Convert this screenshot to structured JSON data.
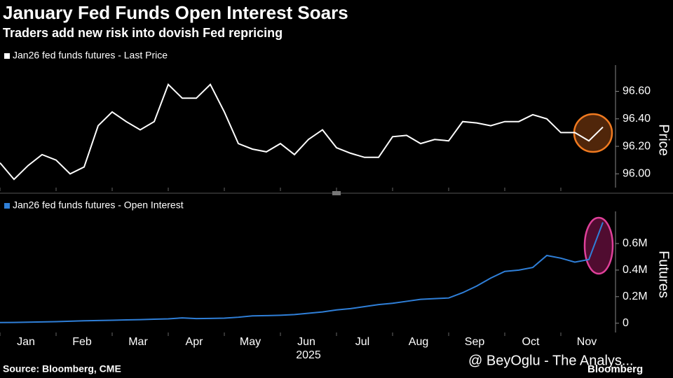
{
  "title": "January Fed Funds Open Interest Soars",
  "subtitle": "Traders add new risk into dovish Fed repricing",
  "source": "Source: Bloomberg, CME",
  "watermark": "@ BeyOglu - The Analys...",
  "brand": "Bloomberg",
  "chart_data": [
    {
      "type": "line",
      "y_label": "Price",
      "categories": [
        null,
        null,
        "Jan",
        null,
        null,
        null,
        "Feb",
        null,
        null,
        null,
        "Mar",
        null,
        null,
        null,
        "Apr",
        null,
        null,
        null,
        "May",
        null,
        null,
        null,
        "Jun",
        null,
        null,
        null,
        "Jul",
        null,
        null,
        null,
        "Aug",
        null,
        null,
        null,
        "Sep",
        null,
        null,
        null,
        "Oct",
        null,
        null,
        null,
        "Nov",
        null
      ],
      "series": [
        {
          "name": "Jan26 fed funds futures - Last Price",
          "color": "#ffffff",
          "values": [
            96.08,
            95.96,
            96.06,
            96.14,
            96.1,
            96.0,
            96.05,
            96.35,
            96.45,
            96.38,
            96.32,
            96.38,
            96.65,
            96.55,
            96.55,
            96.65,
            96.45,
            96.22,
            96.18,
            96.16,
            96.22,
            96.14,
            96.25,
            96.32,
            96.19,
            96.15,
            96.12,
            96.12,
            96.27,
            96.28,
            96.22,
            96.25,
            96.24,
            96.38,
            96.37,
            96.35,
            96.38,
            96.38,
            96.43,
            96.4,
            96.3,
            96.3,
            96.24,
            96.34
          ]
        }
      ],
      "ylim": [
        95.9,
        96.75
      ],
      "yticks": [
        {
          "value": 96,
          "label": "96.00"
        },
        {
          "value": 96.2,
          "label": "96.20"
        },
        {
          "value": 96.4,
          "label": "96.40"
        },
        {
          "value": 96.6,
          "label": "96.60"
        }
      ]
    },
    {
      "type": "line",
      "y_label": "Futures",
      "x_label": "2025",
      "categories": [
        null,
        null,
        "Jan",
        null,
        null,
        null,
        "Feb",
        null,
        null,
        null,
        "Mar",
        null,
        null,
        null,
        "Apr",
        null,
        null,
        null,
        "May",
        null,
        null,
        null,
        "Jun",
        null,
        null,
        null,
        "Jul",
        null,
        null,
        null,
        "Aug",
        null,
        null,
        null,
        "Sep",
        null,
        null,
        null,
        "Oct",
        null,
        null,
        null,
        "Nov",
        null
      ],
      "series": [
        {
          "name": "Jan26 fed funds futures - Open Interest",
          "color": "#2f7fd8",
          "values": [
            5000,
            6000,
            8000,
            10000,
            12000,
            15000,
            18000,
            20000,
            22000,
            25000,
            27000,
            30000,
            33000,
            40000,
            35000,
            36000,
            38000,
            45000,
            55000,
            57000,
            60000,
            65000,
            75000,
            85000,
            100000,
            110000,
            125000,
            140000,
            150000,
            165000,
            180000,
            185000,
            190000,
            230000,
            280000,
            340000,
            390000,
            400000,
            420000,
            510000,
            490000,
            460000,
            480000,
            760000
          ]
        }
      ],
      "ylim": [
        -70000,
        800000
      ],
      "yticks": [
        0,
        {
          "value": 200000,
          "label": "0.2M"
        },
        {
          "value": 400000,
          "label": "0.4M"
        },
        {
          "value": 600000,
          "label": "0.6M"
        }
      ]
    }
  ]
}
